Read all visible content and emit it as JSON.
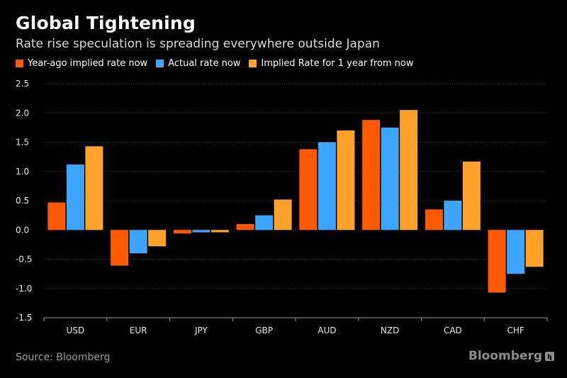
{
  "title": "Global Tightening",
  "subtitle": "Rate rise speculation is spreading everywhere outside Japan",
  "source": "Source: Bloomberg",
  "brand": "Bloomberg",
  "chart_data": {
    "type": "bar",
    "title": "Global Tightening",
    "subtitle": "Rate rise speculation is spreading everywhere outside Japan",
    "xlabel": "",
    "ylabel": "",
    "ylim": [
      -1.5,
      2.5
    ],
    "yticks": [
      2.5,
      2.0,
      1.5,
      1.0,
      0.5,
      0.0,
      -0.5,
      -1.0,
      -1.5
    ],
    "ytick_labels": [
      "2.5",
      "2.0",
      "1.5",
      "1.0",
      "0.5",
      "0.0",
      "-0.5",
      "-1.0",
      "-1.5"
    ],
    "grid": true,
    "legend_position": "top-left",
    "categories": [
      "USD",
      "EUR",
      "JPY",
      "GBP",
      "AUD",
      "NZD",
      "CAD",
      "CHF"
    ],
    "series": [
      {
        "name": "Year-ago implied rate now",
        "color": "#ff5a00",
        "values": [
          0.47,
          -0.61,
          -0.06,
          0.1,
          1.38,
          1.88,
          0.35,
          -1.07
        ]
      },
      {
        "name": "Actual rate now",
        "color": "#3da5ff",
        "values": [
          1.12,
          -0.4,
          -0.04,
          0.25,
          1.5,
          1.75,
          0.5,
          -0.75
        ]
      },
      {
        "name": "Implied Rate for 1 year from now",
        "color": "#ffa12a",
        "values": [
          1.43,
          -0.28,
          -0.04,
          0.52,
          1.7,
          2.05,
          1.17,
          -0.63
        ]
      }
    ]
  }
}
